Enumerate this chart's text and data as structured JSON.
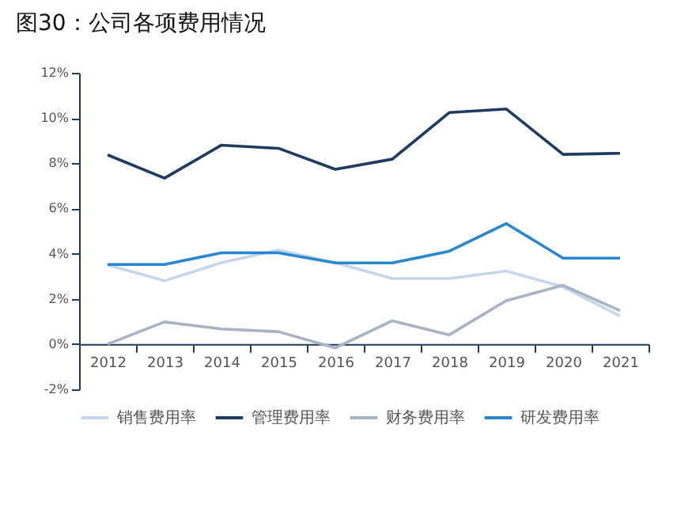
{
  "chart_data": {
    "type": "line",
    "title": "图30：公司各项费用情况",
    "categories": [
      "2012",
      "2013",
      "2014",
      "2015",
      "2016",
      "2017",
      "2018",
      "2019",
      "2020",
      "2021"
    ],
    "series": [
      {
        "name": "销售费用率",
        "color": "#c5d6ea",
        "values": [
          3.5,
          2.8,
          3.6,
          4.16,
          3.6,
          2.9,
          2.9,
          3.23,
          2.53,
          1.24
        ]
      },
      {
        "name": "管理费用率",
        "color": "#1f3b5f",
        "values": [
          8.37,
          7.34,
          8.8,
          8.66,
          7.73,
          8.18,
          10.24,
          10.4,
          8.39,
          8.44
        ]
      },
      {
        "name": "财务费用率",
        "color": "#a8b4c4",
        "values": [
          0,
          0.98,
          0.67,
          0.55,
          -0.17,
          1.03,
          0.41,
          1.92,
          2.6,
          1.48
        ]
      },
      {
        "name": "研发费用率",
        "color": "#2a86cf",
        "values": [
          3.52,
          3.52,
          4.04,
          4.04,
          3.59,
          3.59,
          4.11,
          5.33,
          3.8,
          3.8
        ]
      }
    ],
    "ylim": [
      -2,
      12
    ],
    "yticks": [
      {
        "value": -2,
        "label": "-2%"
      },
      {
        "value": 0,
        "label": "0%"
      },
      {
        "value": 2,
        "label": "2%"
      },
      {
        "value": 4,
        "label": "4%"
      },
      {
        "value": 6,
        "label": "6%"
      },
      {
        "value": 8,
        "label": "8%"
      },
      {
        "value": 10,
        "label": "10%"
      },
      {
        "value": 12,
        "label": "12%"
      }
    ],
    "grid": false,
    "legend": "bottom",
    "marker": "none",
    "line_style": "solid"
  }
}
